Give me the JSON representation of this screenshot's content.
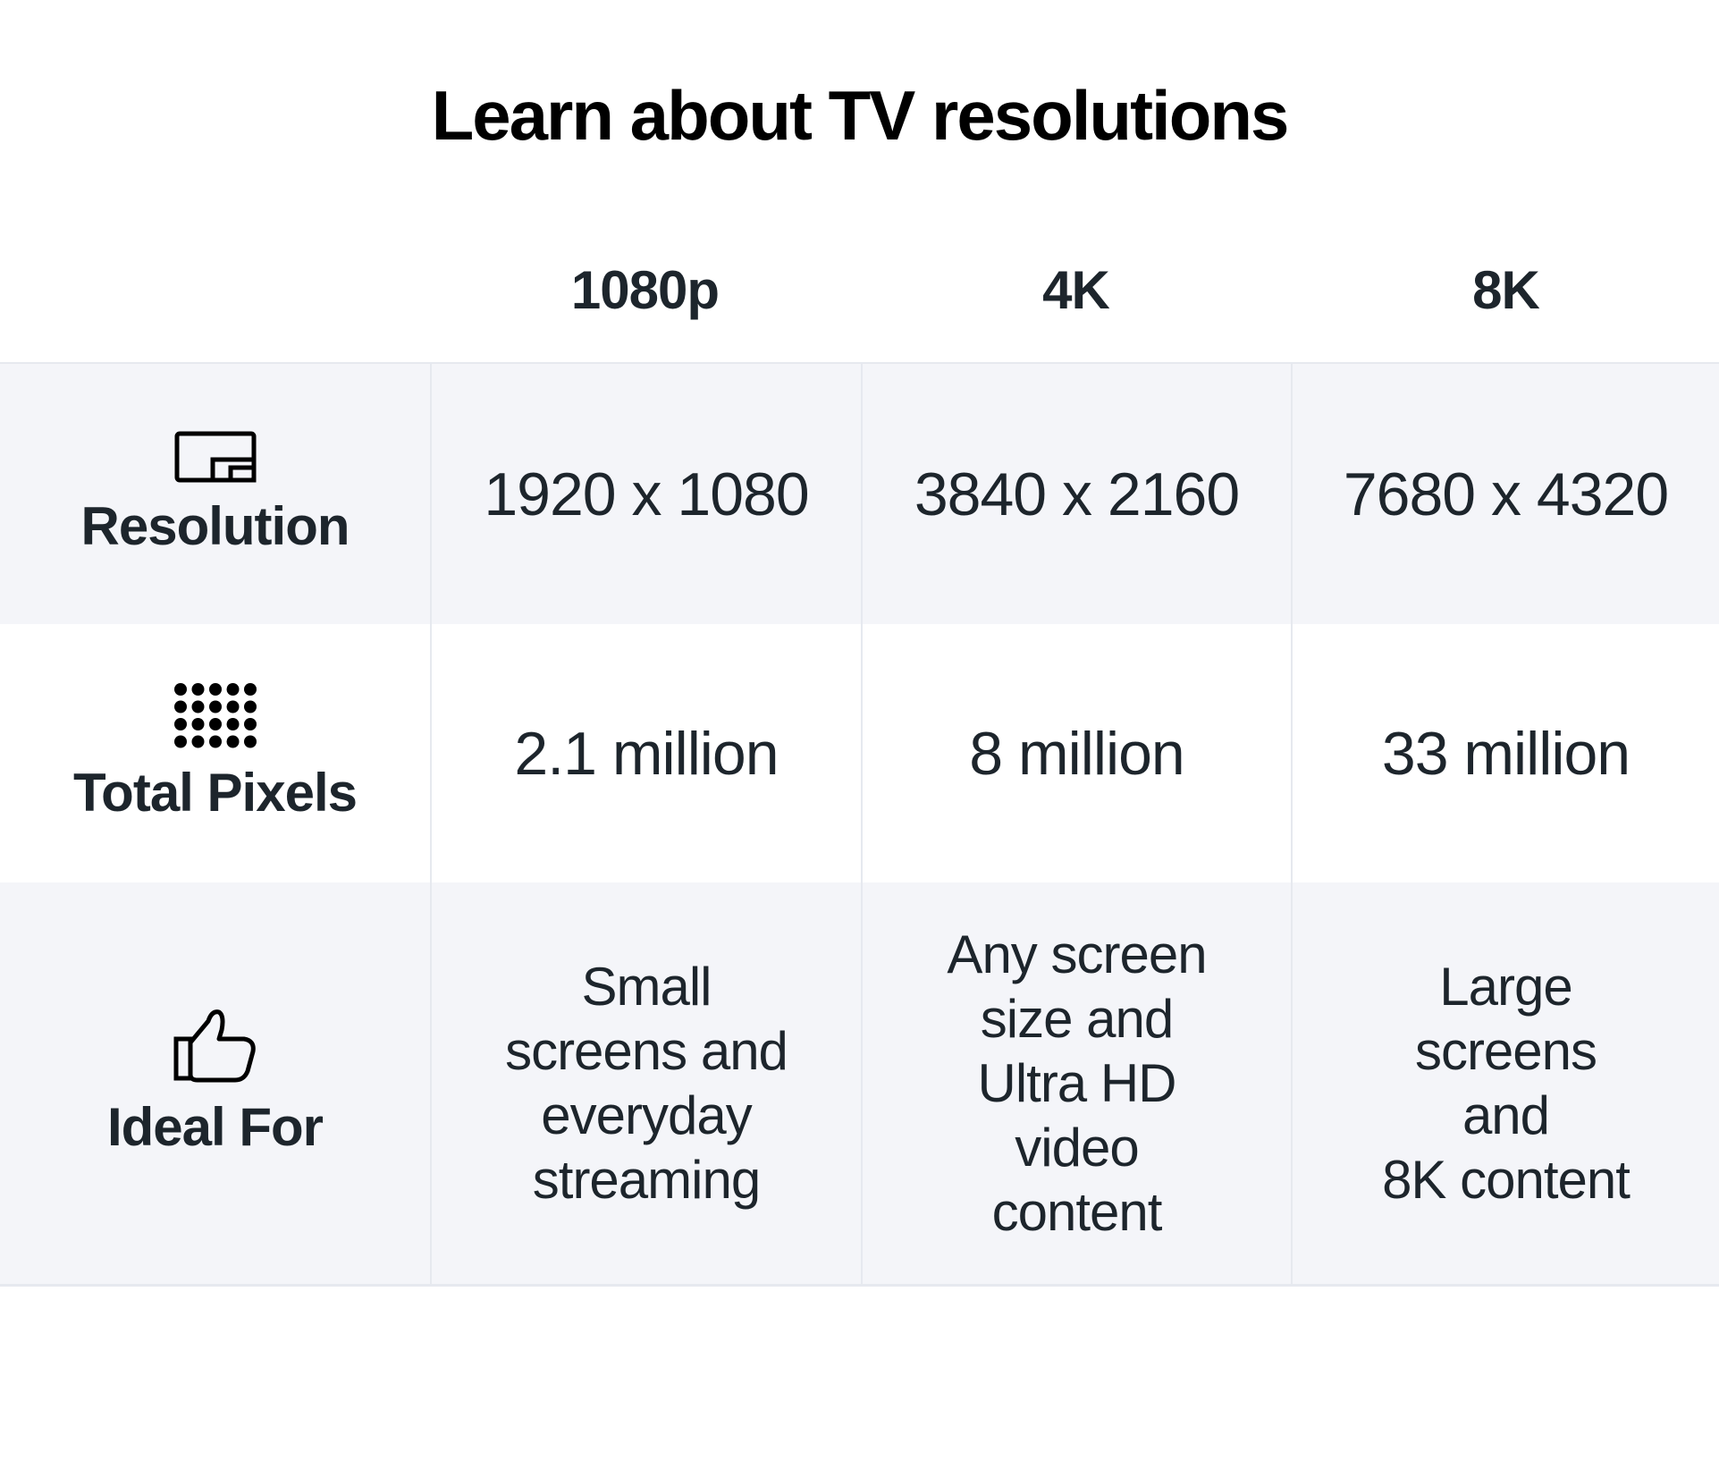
{
  "title": "Learn about TV resolutions",
  "columns": [
    "1080p",
    "4K",
    "8K"
  ],
  "rows": [
    {
      "label": "Resolution",
      "icon": "picture-in-picture-icon",
      "values": [
        "1920 x 1080",
        "3840 x 2160",
        "7680 x 4320"
      ]
    },
    {
      "label": "Total Pixels",
      "icon": "pixel-grid-icon",
      "values": [
        "2.1 million",
        "8 million",
        "33 million"
      ]
    },
    {
      "label": "Ideal For",
      "icon": "thumbs-up-icon",
      "values": [
        [
          "Small",
          "screens and",
          "everyday",
          "streaming"
        ],
        [
          "Any screen",
          "size and",
          "Ultra HD",
          "video",
          "content"
        ],
        [
          "Large",
          "screens",
          "and",
          "8K content"
        ]
      ]
    }
  ],
  "colors": {
    "text": "#1d252c",
    "row_shade": "#f4f5f9",
    "border": "#e6e9ef"
  }
}
